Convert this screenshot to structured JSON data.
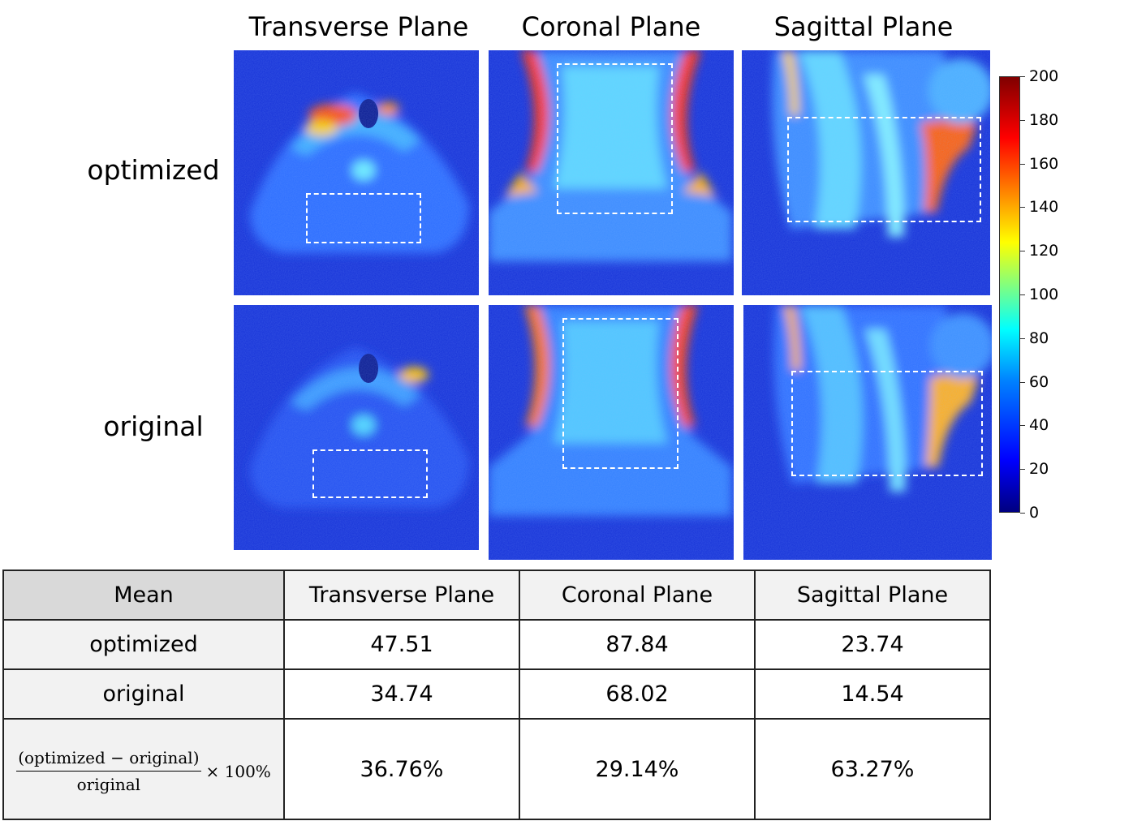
{
  "figure": {
    "columns": [
      "Transverse Plane",
      "Coronal Plane",
      "Sagittal Plane"
    ],
    "rows": [
      "optimized",
      "original"
    ],
    "colorbar": {
      "colormap": "jet",
      "min": 0,
      "max": 200,
      "ticks": [
        "200",
        "180",
        "160",
        "140",
        "120",
        "100",
        "80",
        "60",
        "40",
        "20",
        "0"
      ]
    }
  },
  "table": {
    "header": [
      "Mean",
      "Transverse Plane",
      "Coronal Plane",
      "Sagittal Plane"
    ],
    "rows": [
      {
        "label": "optimized",
        "values": [
          "47.51",
          "87.84",
          "23.74"
        ]
      },
      {
        "label": "original",
        "values": [
          "34.74",
          "68.02",
          "14.54"
        ]
      }
    ],
    "formula": {
      "numerator": "(optimized − original)",
      "denominator": "original",
      "suffix": "× 100%"
    },
    "formula_values": [
      "36.76%",
      "29.14%",
      "63.27%"
    ]
  }
}
